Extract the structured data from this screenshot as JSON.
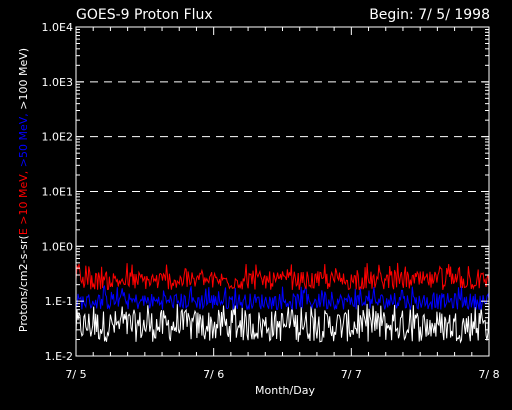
{
  "chart_data": {
    "type": "line",
    "title": "GOES-9 Proton Flux",
    "begin_label": "Begin: 7/ 5/ 1998",
    "xlabel": "Month/Day",
    "ylabel_parts": [
      {
        "text": "Protons/cm2-s-sr(",
        "color": "#ffffff"
      },
      {
        "text": "E >10 MeV,",
        "color": "#ff0000"
      },
      {
        "text": " ",
        "color": "#ffffff"
      },
      {
        "text": ">50 MeV,",
        "color": "#0000ff"
      },
      {
        "text": " ",
        "color": "#ffffff"
      },
      {
        "text": ">100 MeV",
        "color": "#ffffff"
      },
      {
        "text": ")",
        "color": "#ffffff"
      }
    ],
    "x_ticks": [
      "7/ 5",
      "7/ 6",
      "7/ 7",
      "7/ 8"
    ],
    "xlim": [
      0,
      3
    ],
    "y_scale": "log",
    "ylim": [
      0.01,
      10000
    ],
    "y_ticks": [
      {
        "value": 0.01,
        "label": "1.E-2"
      },
      {
        "value": 0.1,
        "label": "1.E-1"
      },
      {
        "value": 1,
        "label": "1.0E0"
      },
      {
        "value": 10,
        "label": "1.0E1"
      },
      {
        "value": 100,
        "label": "1.0E2"
      },
      {
        "value": 1000,
        "label": "1.0E3"
      },
      {
        "value": 10000,
        "label": "1.0E4"
      }
    ],
    "dashed_gridlines_at": [
      1,
      10,
      100,
      1000
    ],
    "series": [
      {
        "name": "E >10 MeV",
        "color": "#ff0000",
        "baseline": 0.22,
        "noise_low": 0.16,
        "noise_high": 0.35,
        "spike_max": 0.5
      },
      {
        "name": ">50 MeV",
        "color": "#0000ff",
        "baseline": 0.095,
        "noise_low": 0.07,
        "noise_high": 0.14,
        "spike_max": 0.19
      },
      {
        "name": ">100 MeV",
        "color": "#ffffff",
        "baseline": 0.04,
        "noise_low": 0.018,
        "noise_high": 0.07,
        "spike_max": 0.09
      }
    ],
    "background": "#000000",
    "axis_color": "#ffffff"
  }
}
